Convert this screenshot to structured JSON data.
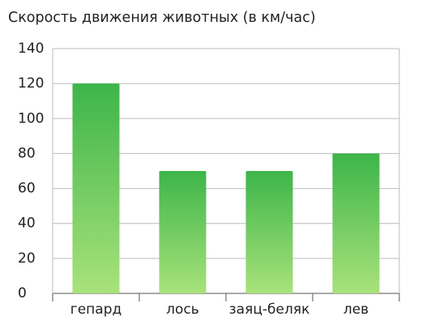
{
  "chart_data": {
    "type": "bar",
    "title": "Скорость движения животных (в км/час)",
    "categories": [
      "гепард",
      "лось",
      "заяц-беляк",
      "лев"
    ],
    "values": [
      120,
      70,
      70,
      80
    ],
    "gradient": [
      "#3db54a",
      "#a9e27b"
    ],
    "ylim": [
      0,
      140
    ],
    "yticks": [
      0,
      20,
      40,
      60,
      80,
      100,
      120,
      140
    ],
    "grid": true
  }
}
